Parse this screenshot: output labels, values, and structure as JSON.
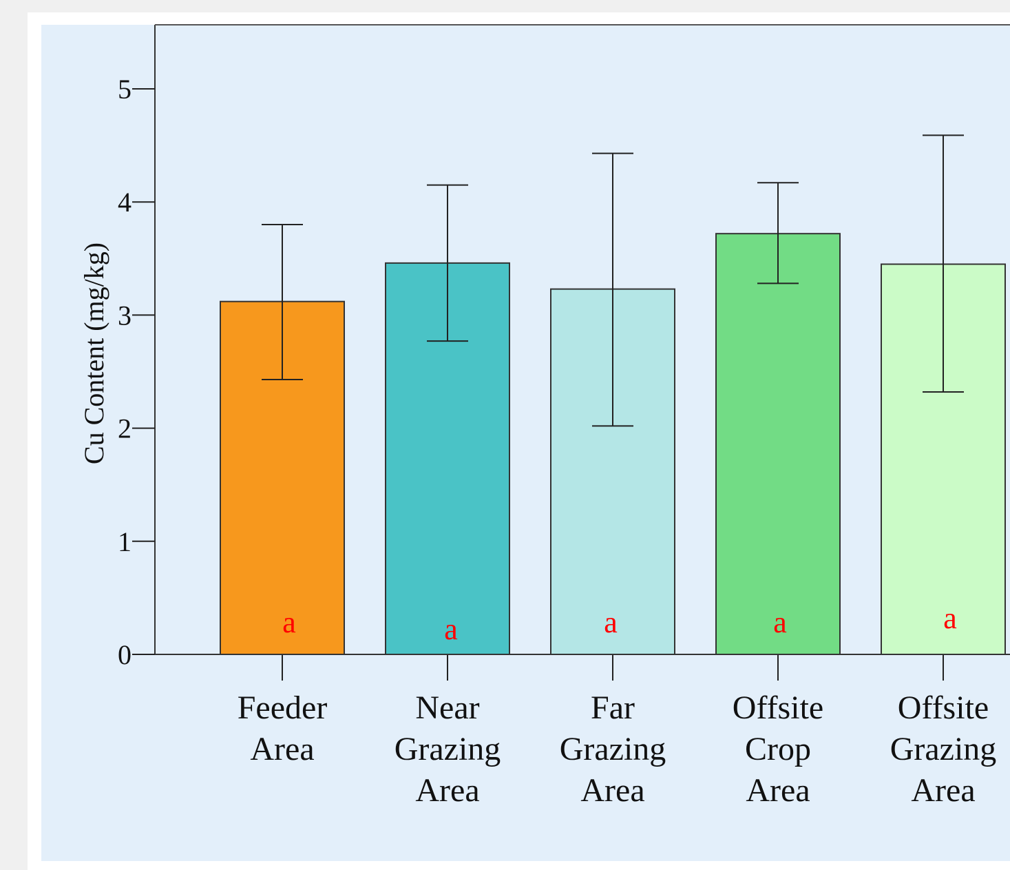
{
  "chart_data": {
    "type": "bar",
    "ylabel": "Cu Content (mg/kg)",
    "xlabel": "",
    "ylim": [
      0,
      5.5
    ],
    "yticks": [
      0,
      1,
      2,
      3,
      4,
      5
    ],
    "grid": false,
    "legend": "none",
    "categories": [
      [
        "Feeder",
        "Area"
      ],
      [
        "Near",
        "Grazing",
        "Area"
      ],
      [
        "Far",
        "Grazing",
        "Area"
      ],
      [
        "Offsite",
        "Crop",
        "Area"
      ],
      [
        "Offsite",
        "Grazing",
        "Area"
      ]
    ],
    "values": [
      3.12,
      3.46,
      3.23,
      3.72,
      3.45
    ],
    "error_low": [
      2.43,
      2.77,
      2.02,
      3.28,
      2.32
    ],
    "error_high": [
      3.8,
      4.15,
      4.43,
      4.17,
      4.59
    ],
    "significance": [
      "a",
      "a",
      "a",
      "a",
      "a"
    ],
    "colors": [
      "#f7981d",
      "#4ac3c6",
      "#b4e6e6",
      "#72dc85",
      "#cbfbc7"
    ],
    "plot_background": "#e3effa",
    "significance_color": "#ff0000"
  }
}
